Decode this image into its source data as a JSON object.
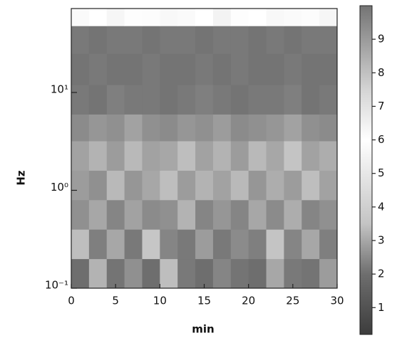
{
  "chart_data": {
    "type": "heatmap",
    "xlabel": "min",
    "ylabel": "Hz",
    "xlim": [
      0,
      30
    ],
    "xticks": [
      0,
      5,
      10,
      15,
      20,
      25,
      30
    ],
    "ylim": [
      0.1,
      72
    ],
    "yscale": "log",
    "yticks": [
      {
        "value": 0.1,
        "label": "10⁻¹"
      },
      {
        "value": 1,
        "label": "10⁰"
      },
      {
        "value": 10,
        "label": "10¹"
      }
    ],
    "x_edges": [
      0,
      2,
      4,
      6,
      8,
      10,
      12,
      14,
      16,
      18,
      20,
      22,
      24,
      26,
      28,
      30
    ],
    "y_edges": [
      0.1,
      0.2,
      0.4,
      0.8,
      1.6,
      3.2,
      6,
      12,
      25,
      48,
      72
    ],
    "values": [
      [
        2.0,
        3.2,
        2.1,
        2.6,
        2.0,
        3.4,
        2.2,
        2.0,
        2.4,
        2.1,
        2.0,
        3.0,
        2.2,
        2.1,
        2.8
      ],
      [
        3.4,
        2.3,
        3.0,
        2.2,
        3.6,
        2.4,
        2.2,
        2.8,
        2.2,
        2.5,
        2.3,
        3.5,
        2.4,
        3.0,
        2.3
      ],
      [
        2.6,
        3.0,
        2.4,
        2.9,
        2.5,
        2.6,
        3.2,
        2.4,
        2.7,
        2.4,
        3.0,
        2.5,
        3.1,
        2.4,
        2.6
      ],
      [
        2.8,
        2.6,
        3.3,
        2.7,
        3.0,
        3.4,
        2.8,
        3.2,
        2.9,
        3.3,
        2.7,
        3.1,
        2.8,
        3.4,
        2.9
      ],
      [
        2.9,
        3.2,
        2.8,
        3.3,
        2.9,
        3.0,
        3.4,
        2.9,
        3.2,
        2.8,
        3.3,
        3.0,
        3.5,
        2.9,
        3.1
      ],
      [
        2.5,
        2.7,
        2.6,
        2.9,
        2.6,
        2.5,
        2.7,
        2.6,
        2.8,
        2.5,
        2.6,
        2.7,
        2.9,
        2.6,
        2.5
      ],
      [
        2.2,
        2.1,
        2.3,
        2.2,
        2.2,
        2.1,
        2.2,
        2.3,
        2.2,
        2.1,
        2.2,
        2.2,
        2.3,
        2.1,
        2.2
      ],
      [
        2.1,
        2.2,
        2.1,
        2.1,
        2.2,
        2.1,
        2.1,
        2.2,
        2.1,
        2.2,
        2.1,
        2.1,
        2.2,
        2.1,
        2.1
      ],
      [
        2.2,
        2.1,
        2.2,
        2.2,
        2.1,
        2.2,
        2.2,
        2.1,
        2.2,
        2.2,
        2.1,
        2.2,
        2.1,
        2.2,
        2.2
      ],
      [
        5.8,
        6.0,
        5.6,
        5.9,
        6.1,
        5.7,
        5.8,
        6.0,
        5.5,
        5.9,
        6.0,
        5.7,
        5.8,
        6.1,
        5.6
      ]
    ],
    "clim": [
      0.2,
      10
    ],
    "cbar_ticks": [
      1,
      2,
      3,
      4,
      5,
      6,
      7,
      8,
      9
    ],
    "colormap": [
      [
        0.2,
        "#3c3c3c"
      ],
      [
        2,
        "#6e6e6e"
      ],
      [
        3.5,
        "#c4c4c4"
      ],
      [
        6,
        "#ffffff"
      ],
      [
        7.5,
        "#d4d4d4"
      ],
      [
        10,
        "#747474"
      ]
    ]
  }
}
